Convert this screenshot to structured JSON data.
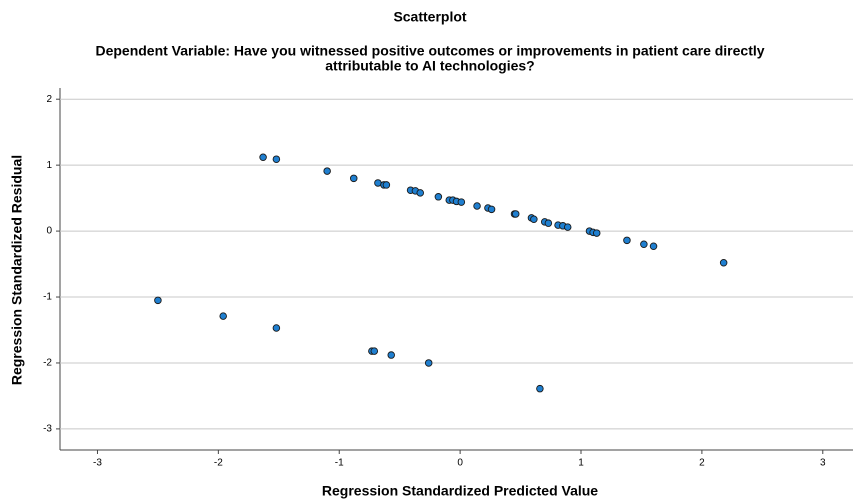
{
  "chart_data": {
    "type": "scatter",
    "title": "Scatterplot",
    "subtitle": [
      "Dependent Variable: Have you witnessed positive outcomes or improvements in patient care directly",
      "attributable to AI technologies?"
    ],
    "x_label": "Regression Standardized Predicted Value",
    "y_label": "Regression Standardized Residual",
    "color": "#1f7fd0",
    "grid": true,
    "xlim": [
      -3.31,
      3.25
    ],
    "ylim": [
      -3.32,
      2.17
    ],
    "xticks": [
      -3,
      -2,
      -1,
      0,
      1,
      2,
      3
    ],
    "yticks": [
      -3,
      -2,
      -1,
      0,
      1,
      2
    ],
    "x": [
      -1.63,
      -1.52,
      -1.1,
      -0.88,
      -0.68,
      -0.63,
      -0.61,
      -0.41,
      -0.37,
      -0.33,
      -0.18,
      -0.09,
      -0.06,
      -0.03,
      0.01,
      0.14,
      0.23,
      0.26,
      0.45,
      0.46,
      0.59,
      0.61,
      0.7,
      0.73,
      0.81,
      0.85,
      0.89,
      1.07,
      1.1,
      1.13,
      1.38,
      1.52,
      1.6,
      2.18,
      -2.5,
      -1.96,
      -1.52,
      -0.73,
      -0.71,
      -0.57,
      -0.26,
      0.66
    ],
    "values": [
      1.12,
      1.09,
      0.91,
      0.8,
      0.73,
      0.7,
      0.7,
      0.62,
      0.61,
      0.58,
      0.52,
      0.47,
      0.47,
      0.45,
      0.44,
      0.38,
      0.35,
      0.33,
      0.26,
      0.26,
      0.2,
      0.18,
      0.14,
      0.12,
      0.09,
      0.08,
      0.06,
      0.0,
      -0.02,
      -0.03,
      -0.14,
      -0.2,
      -0.23,
      -0.48,
      -1.05,
      -1.29,
      -1.47,
      -1.82,
      -1.82,
      -1.88,
      -2.0,
      -2.39
    ]
  }
}
